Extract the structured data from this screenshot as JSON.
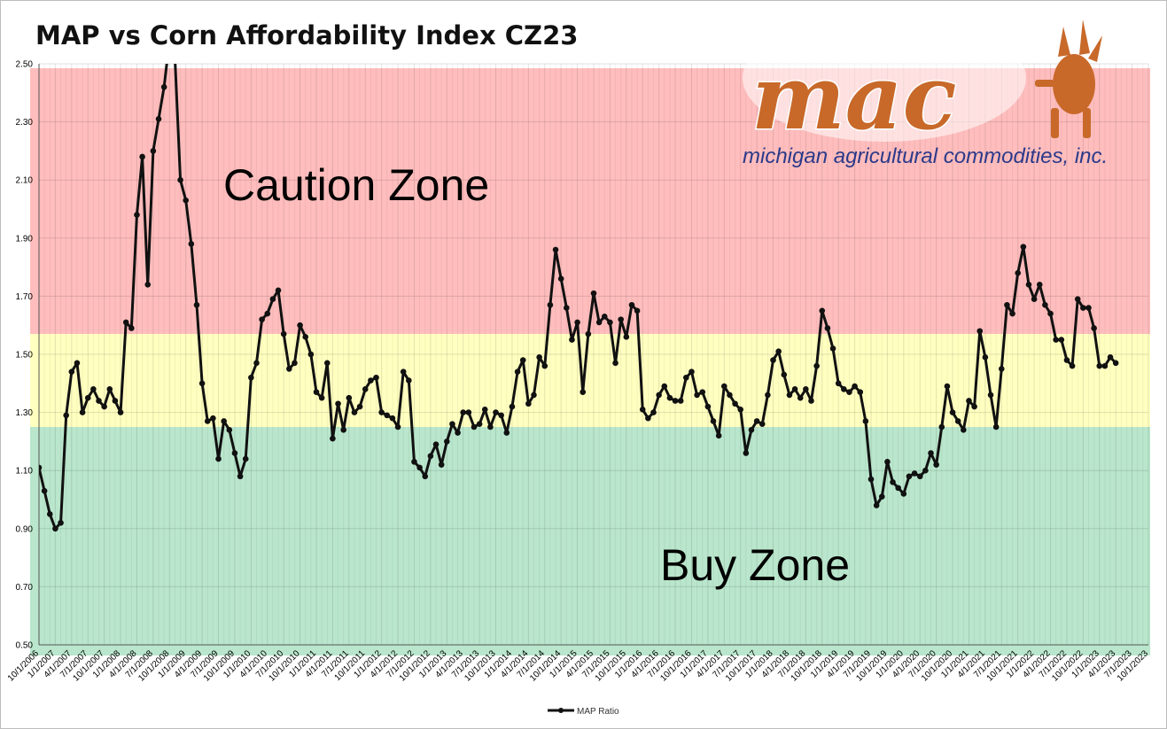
{
  "chart_data": {
    "type": "line",
    "title": "MAP vs Corn Affordability Index CZ23",
    "xlabel": "",
    "ylabel": "",
    "ylim": [
      0.5,
      2.5
    ],
    "yticks": [
      "0.50",
      "0.70",
      "0.90",
      "1.10",
      "1.30",
      "1.50",
      "1.70",
      "1.90",
      "2.10",
      "2.30",
      "2.50"
    ],
    "xticks": [
      "10/1/2006",
      "1/1/2007",
      "4/1/2007",
      "7/1/2007",
      "10/1/2007",
      "1/1/2008",
      "4/1/2008",
      "7/1/2008",
      "10/1/2008",
      "1/1/2009",
      "4/1/2009",
      "7/1/2009",
      "10/1/2009",
      "1/1/2010",
      "4/1/2010",
      "7/1/2010",
      "10/1/2010",
      "1/1/2011",
      "4/1/2011",
      "7/1/2011",
      "10/1/2011",
      "1/1/2012",
      "4/1/2012",
      "7/1/2012",
      "10/1/2012",
      "1/1/2013",
      "4/1/2013",
      "7/1/2013",
      "10/1/2013",
      "1/1/2014",
      "4/1/2014",
      "7/1/2014",
      "10/1/2014",
      "1/1/2015",
      "4/1/2015",
      "7/1/2015",
      "10/1/2015",
      "1/1/2016",
      "4/1/2016",
      "7/1/2016",
      "10/1/2016",
      "1/1/2017",
      "4/1/2017",
      "7/1/2017",
      "10/1/2017",
      "1/1/2018",
      "4/1/2018",
      "7/1/2018",
      "10/1/2018",
      "1/1/2019",
      "4/1/2019",
      "7/1/2019",
      "10/1/2019",
      "1/1/2020",
      "4/1/2020",
      "7/1/2020",
      "10/1/2020",
      "1/1/2021",
      "4/1/2021",
      "7/1/2021",
      "10/1/2021",
      "1/1/2022",
      "4/1/2022",
      "7/1/2022",
      "10/1/2022",
      "1/1/2023",
      "4/1/2023",
      "7/1/2023",
      "10/1/2023"
    ],
    "zones": [
      {
        "label": "Caution Zone",
        "from": 1.57,
        "to": 2.5,
        "color": "#ffbdbd"
      },
      {
        "label": "",
        "from": 1.25,
        "to": 1.57,
        "color": "#ffffc0"
      },
      {
        "label": "Buy Zone",
        "from": 0.5,
        "to": 1.25,
        "color": "#b9e6cc"
      }
    ],
    "grid": true,
    "legend_position": "bottom",
    "series": [
      {
        "name": "MAP Ratio",
        "color": "#111111",
        "start": "10/1/2006",
        "step_months": 1,
        "values": [
          1.11,
          1.03,
          0.95,
          0.9,
          0.92,
          1.29,
          1.44,
          1.47,
          1.3,
          1.35,
          1.38,
          1.34,
          1.32,
          1.38,
          1.34,
          1.3,
          1.61,
          1.59,
          1.98,
          2.18,
          1.74,
          2.2,
          2.31,
          2.42,
          2.58,
          2.52,
          2.1,
          2.03,
          1.88,
          1.67,
          1.4,
          1.27,
          1.28,
          1.14,
          1.27,
          1.24,
          1.16,
          1.08,
          1.14,
          1.42,
          1.47,
          1.62,
          1.64,
          1.69,
          1.72,
          1.57,
          1.45,
          1.47,
          1.6,
          1.56,
          1.5,
          1.37,
          1.35,
          1.47,
          1.21,
          1.33,
          1.24,
          1.35,
          1.3,
          1.32,
          1.38,
          1.41,
          1.42,
          1.3,
          1.29,
          1.28,
          1.25,
          1.44,
          1.41,
          1.13,
          1.11,
          1.08,
          1.15,
          1.19,
          1.12,
          1.2,
          1.26,
          1.23,
          1.3,
          1.3,
          1.25,
          1.26,
          1.31,
          1.25,
          1.3,
          1.29,
          1.23,
          1.32,
          1.44,
          1.48,
          1.33,
          1.36,
          1.49,
          1.46,
          1.67,
          1.86,
          1.76,
          1.66,
          1.55,
          1.61,
          1.37,
          1.57,
          1.71,
          1.61,
          1.63,
          1.61,
          1.47,
          1.62,
          1.56,
          1.67,
          1.65,
          1.31,
          1.28,
          1.3,
          1.36,
          1.39,
          1.35,
          1.34,
          1.34,
          1.42,
          1.44,
          1.36,
          1.37,
          1.32,
          1.27,
          1.22,
          1.39,
          1.36,
          1.33,
          1.31,
          1.16,
          1.24,
          1.27,
          1.26,
          1.36,
          1.48,
          1.51,
          1.43,
          1.36,
          1.38,
          1.35,
          1.38,
          1.34,
          1.46,
          1.65,
          1.59,
          1.52,
          1.4,
          1.38,
          1.37,
          1.39,
          1.37,
          1.27,
          1.07,
          0.98,
          1.01,
          1.13,
          1.06,
          1.04,
          1.02,
          1.08,
          1.09,
          1.08,
          1.1,
          1.16,
          1.12,
          1.25,
          1.39,
          1.3,
          1.27,
          1.24,
          1.34,
          1.32,
          1.58,
          1.49,
          1.36,
          1.25,
          1.45,
          1.67,
          1.64,
          1.78,
          1.87,
          1.74,
          1.69,
          1.74,
          1.67,
          1.64,
          1.55,
          1.55,
          1.48,
          1.46,
          1.69,
          1.66,
          1.66,
          1.59,
          1.46,
          1.46,
          1.49,
          1.47
        ]
      }
    ]
  },
  "logo": {
    "wordmark": "mac",
    "tagline": "michigan agricultural commodities, inc."
  }
}
